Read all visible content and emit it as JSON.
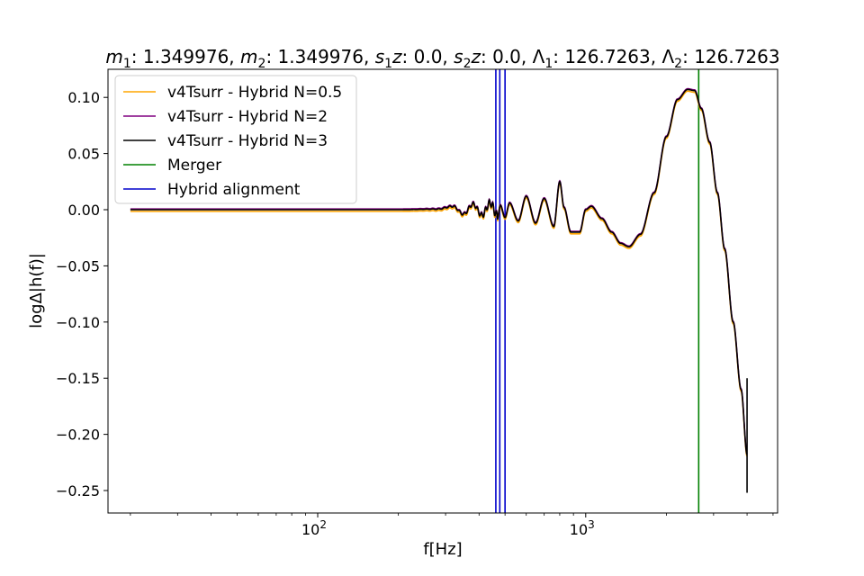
{
  "chart_data": {
    "type": "line",
    "title": "m1: 1.349976, m2: 1.349976, s1z: 0.0, s2z: 0.0, Λ1: 126.7263, Λ2: 126.7263",
    "title_parts": {
      "m1": "1.349976",
      "m2": "1.349976",
      "s1z": "0.0",
      "s2z": "0.0",
      "lambda1": "126.7263",
      "lambda2": "126.7263"
    },
    "xlabel": "f[Hz]",
    "ylabel": "logΔ|h(f)|",
    "xscale": "log",
    "xlim": [
      16.5,
      5200
    ],
    "ylim": [
      -0.27,
      0.125
    ],
    "x_ticks": [
      {
        "value": 100,
        "label": "10"
      },
      {
        "value": 1000,
        "label": "10"
      }
    ],
    "x_tick_exponent": "2",
    "x_tick_exponent_2": "3",
    "y_ticks": [
      {
        "value": 0.1,
        "label": "0.10"
      },
      {
        "value": 0.05,
        "label": "0.05"
      },
      {
        "value": 0.0,
        "label": "0.00"
      },
      {
        "value": -0.05,
        "label": "−0.05"
      },
      {
        "value": -0.1,
        "label": "−0.10"
      },
      {
        "value": -0.15,
        "label": "−0.15"
      },
      {
        "value": -0.2,
        "label": "−0.20"
      },
      {
        "value": -0.25,
        "label": "−0.25"
      }
    ],
    "grid": false,
    "legend_position": "top-left",
    "series": [
      {
        "name": "v4Tsurr - Hybrid N=0.5",
        "color": "#ffa500",
        "offset": -0.0015
      },
      {
        "name": "v4Tsurr - Hybrid N=2",
        "color": "#800080",
        "offset": 0.0007
      },
      {
        "name": "v4Tsurr - Hybrid N=3",
        "color": "#000000",
        "offset": 0.0
      }
    ],
    "curve_x": [
      20,
      100,
      200,
      280,
      320,
      350,
      380,
      410,
      440,
      470,
      480,
      500,
      520,
      560,
      600,
      650,
      700,
      760,
      800,
      830,
      880,
      950,
      1000,
      1050,
      1150,
      1250,
      1350,
      1450,
      1600,
      1800,
      2000,
      2200,
      2400,
      2550,
      2700,
      2900,
      3100,
      3300,
      3550,
      3800,
      4000
    ],
    "curve_y": [
      0.0,
      0.0,
      0.0,
      0.0005,
      0.003,
      -0.004,
      0.005,
      -0.005,
      0.006,
      -0.006,
      0.004,
      -0.007,
      0.006,
      -0.01,
      0.012,
      -0.012,
      0.01,
      -0.015,
      0.025,
      0.002,
      -0.02,
      -0.02,
      0.0,
      0.003,
      -0.008,
      -0.02,
      -0.03,
      -0.033,
      -0.022,
      0.015,
      0.065,
      0.098,
      0.107,
      0.106,
      0.09,
      0.06,
      0.015,
      -0.035,
      -0.1,
      -0.16,
      -0.218
    ],
    "oscillation": {
      "x_start": 280,
      "x_end": 470
    },
    "spike": {
      "x": 4000,
      "y_top": -0.15,
      "y_bottom": -0.252
    },
    "vlines": [
      {
        "name": "Merger",
        "color": "#008000",
        "x": [
          2640
        ]
      },
      {
        "name": "Hybrid alignment",
        "color": "#0000cc",
        "x": [
          462,
          478,
          500
        ]
      }
    ]
  }
}
